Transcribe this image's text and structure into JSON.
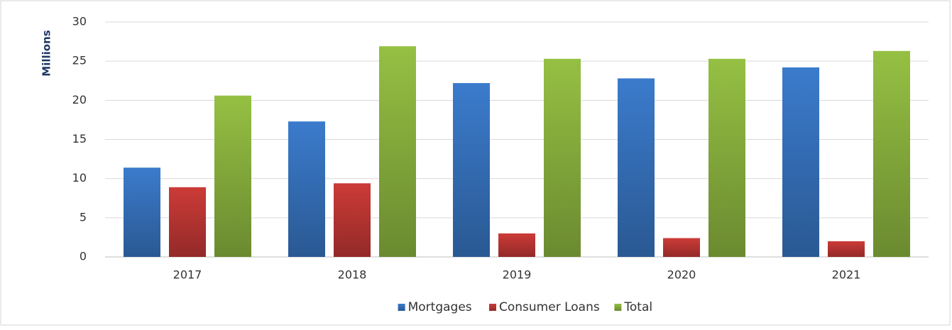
{
  "chart_data": {
    "type": "bar",
    "ylabel": "Millions",
    "categories": [
      "2017",
      "2018",
      "2019",
      "2020",
      "2021"
    ],
    "series": [
      {
        "name": "Mortgages",
        "color": "#3b7bcc",
        "values": [
          11.4,
          17.3,
          22.2,
          22.8,
          24.2
        ]
      },
      {
        "name": "Consumer Loans",
        "color": "#cc3b37",
        "values": [
          8.9,
          9.4,
          3.0,
          2.4,
          2.0
        ]
      },
      {
        "name": "Total",
        "color": "#95c043",
        "values": [
          20.6,
          26.9,
          25.3,
          25.3,
          26.3
        ]
      }
    ],
    "ylim": [
      0,
      30
    ],
    "yticks": [
      0,
      5,
      10,
      15,
      20,
      25,
      30
    ],
    "grid": true,
    "legend": "bottom"
  }
}
